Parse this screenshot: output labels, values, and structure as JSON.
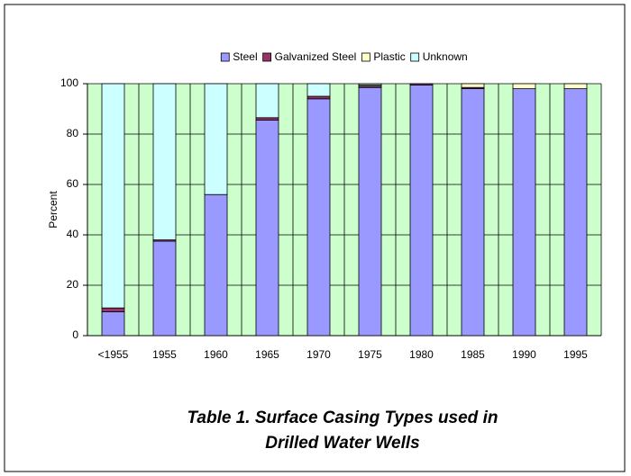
{
  "chart_data": {
    "type": "stacked_bar",
    "y_label": "Percent",
    "caption": [
      "Table 1. Surface Casing Types used in",
      "Drilled Water Wells"
    ],
    "categories": [
      "<1955",
      "1955",
      "1960",
      "1965",
      "1970",
      "1975",
      "1980",
      "1985",
      "1990",
      "1995"
    ],
    "series": [
      {
        "name": "Steel",
        "color": "#9999ff",
        "values": [
          9.5,
          37.5,
          56,
          85.5,
          94,
          98.5,
          99.5,
          98,
          98,
          98
        ]
      },
      {
        "name": "Galvanized Steel",
        "color": "#993366",
        "values": [
          1.5,
          0.5,
          0,
          1,
          1,
          0.5,
          0.5,
          0.5,
          0,
          0
        ]
      },
      {
        "name": "Plastic",
        "color": "#ffffcc",
        "values": [
          0,
          0,
          0,
          0,
          0,
          0.5,
          0,
          1.5,
          2,
          2
        ]
      },
      {
        "name": "Unknown",
        "color": "#ccffff",
        "values": [
          89,
          62,
          44,
          13.5,
          5,
          0.5,
          0,
          0,
          0,
          0
        ]
      }
    ],
    "ylim": [
      0,
      100
    ],
    "yticks": [
      0,
      20,
      40,
      60,
      80,
      100
    ],
    "grid": true,
    "legend": "top"
  }
}
